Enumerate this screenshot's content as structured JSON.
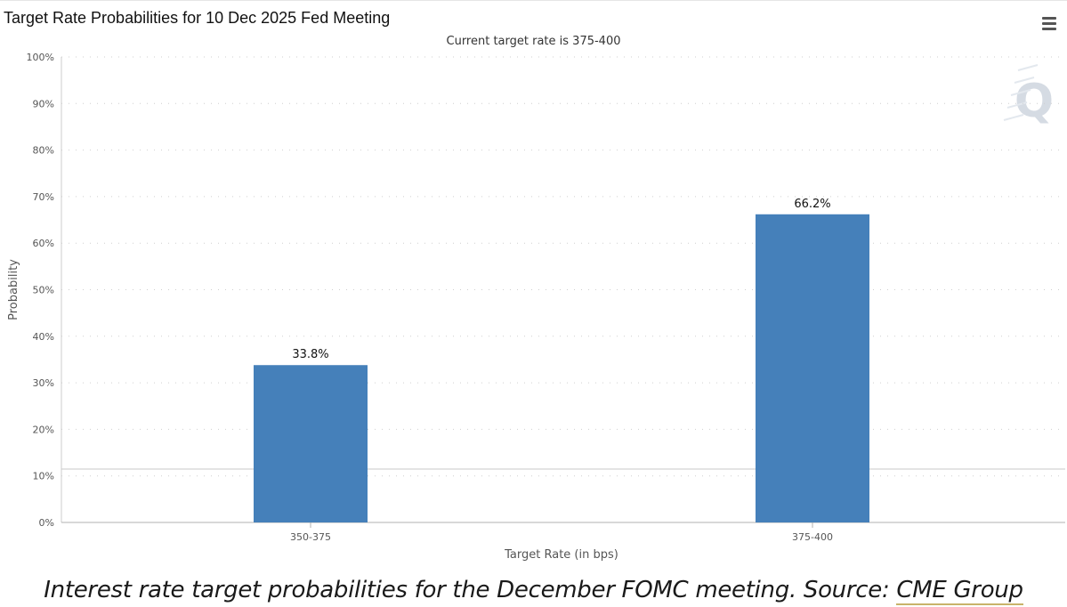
{
  "chart_data": {
    "type": "bar",
    "title": "Target Rate Probabilities for 10 Dec 2025 Fed Meeting",
    "subtitle": "Current target rate is 375-400",
    "xlabel": "Target Rate (in bps)",
    "ylabel": "Probability",
    "categories": [
      "350-375",
      "375-400"
    ],
    "values": [
      33.8,
      66.2
    ],
    "data_labels": [
      "33.8%",
      "66.2%"
    ],
    "ylim": [
      0,
      100
    ],
    "yticks": [
      0,
      10,
      20,
      30,
      40,
      50,
      60,
      70,
      80,
      90,
      100
    ],
    "ytick_labels": [
      "0%",
      "10%",
      "20%",
      "30%",
      "40%",
      "50%",
      "60%",
      "70%",
      "80%",
      "90%",
      "100%"
    ],
    "grid": true,
    "legend": "none",
    "bar_color": "#4580ba"
  },
  "watermark": "Q",
  "menu": {
    "icon": "hamburger-menu-icon"
  },
  "caption": {
    "text": "Interest rate target probabilities for the December FOMC meeting. Source: ",
    "link_text": "CME Group"
  }
}
